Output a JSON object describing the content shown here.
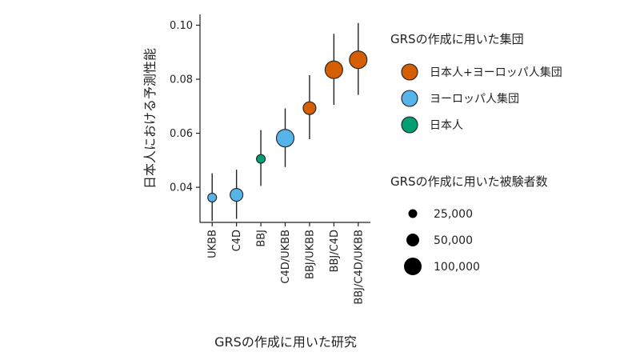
{
  "chart_data": {
    "type": "scatter",
    "xlabel": "GRSの作成に用いた研究",
    "ylabel": "日本人における予測性能",
    "ylim": [
      0.027,
      0.104
    ],
    "yticks": [
      "0.04",
      "0.06",
      "0.08",
      "0.10"
    ],
    "ytick_values": [
      0.04,
      0.06,
      0.08,
      0.1
    ],
    "categories": [
      "UKBB",
      "C4D",
      "BBJ",
      "C4D/UKBB",
      "BBJ/UKBB",
      "BBJ/C4D",
      "BBJ/C4D/UKBB"
    ],
    "points": [
      {
        "x": "UKBB",
        "y": 0.0362,
        "low": 0.0275,
        "high": 0.0452,
        "group": "ヨーロッパ人集団",
        "n": 25000
      },
      {
        "x": "C4D",
        "y": 0.0372,
        "low": 0.0283,
        "high": 0.0465,
        "group": "ヨーロッパ人集団",
        "n": 50000
      },
      {
        "x": "BBJ",
        "y": 0.0505,
        "low": 0.0405,
        "high": 0.0612,
        "group": "日本人",
        "n": 25000
      },
      {
        "x": "C4D/UKBB",
        "y": 0.0582,
        "low": 0.0475,
        "high": 0.0692,
        "group": "ヨーロッパ人集団",
        "n": 100000
      },
      {
        "x": "BBJ/UKBB",
        "y": 0.0693,
        "low": 0.0578,
        "high": 0.0815,
        "group": "日本人+ヨーロッパ人集団",
        "n": 50000
      },
      {
        "x": "BBJ/C4D",
        "y": 0.0835,
        "low": 0.0705,
        "high": 0.0968,
        "group": "日本人+ヨーロッパ人集団",
        "n": 100000
      },
      {
        "x": "BBJ/C4D/UKBB",
        "y": 0.0872,
        "low": 0.0742,
        "high": 0.1008,
        "group": "日本人+ヨーロッパ人集団",
        "n": 100000
      }
    ],
    "color_legend": {
      "title": "GRSの作成に用いた集団",
      "items": [
        {
          "label": "日本人+ヨーロッパ人集団",
          "color": "#D55E00"
        },
        {
          "label": "ヨーロッパ人集団",
          "color": "#56B4E9"
        },
        {
          "label": "日本人",
          "color": "#009E73"
        }
      ]
    },
    "size_legend": {
      "title": "GRSの作成に用いた被験者数",
      "items": [
        {
          "label": "25,000",
          "n": 25000
        },
        {
          "label": "50,000",
          "n": 50000
        },
        {
          "label": "100,000",
          "n": 100000
        }
      ]
    },
    "grid": false,
    "legend_position": "right"
  }
}
